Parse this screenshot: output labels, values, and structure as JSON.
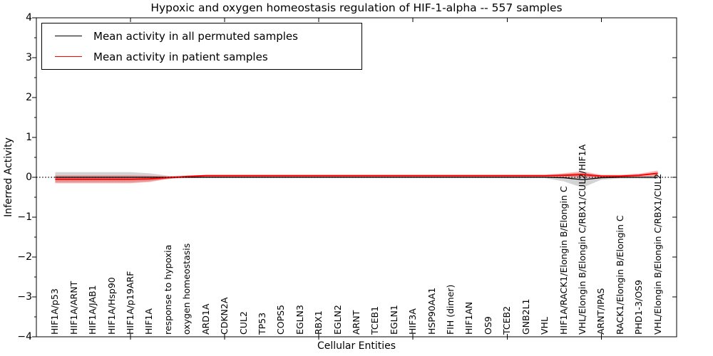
{
  "figure": {
    "window_background": "#ffffff"
  },
  "chart_data": {
    "type": "line",
    "title": "Hypoxic and oxygen homeostasis regulation of HIF-1-alpha -- 557 samples",
    "xlabel": "Cellular Entities",
    "ylabel": "Inferred Activity",
    "ylim": [
      -4,
      4
    ],
    "xlim_pad": 1,
    "grid": false,
    "legend_position": "upper left",
    "zero_reference_line": {
      "y": 0,
      "style": "dotted",
      "color": "#000000"
    },
    "yticks": [
      {
        "label": "4",
        "value": 4
      },
      {
        "label": "3",
        "value": 3
      },
      {
        "label": "2",
        "value": 2
      },
      {
        "label": "1",
        "value": 1
      },
      {
        "label": "0",
        "value": 0
      },
      {
        "label": "−1",
        "value": -1
      },
      {
        "label": "−2",
        "value": -2
      },
      {
        "label": "−3",
        "value": -3
      },
      {
        "label": "−4",
        "value": -4
      }
    ],
    "categories": [
      "HIF1A/p53",
      "HIF1A/ARNT",
      "HIF1A/JAB1",
      "HIF1A/Hsp90",
      "HIF1A/p19ARF",
      "HIF1A",
      "response to hypoxia",
      "oxygen homeostasis",
      "ARD1A",
      "CDKN2A",
      "CUL2",
      "TP53",
      "COPS5",
      "EGLN3",
      "RBX1",
      "EGLN2",
      "ARNT",
      "TCEB1",
      "EGLN1",
      "HIF3A",
      "HSP90AA1",
      "FIH (dimer)",
      "HIF1AN",
      "OS9",
      "TCEB2",
      "GNB2L1",
      "VHL",
      "HIF1A/RACK1/Elongin B/Elongin C",
      "VHL/Elongin B/Elongin C/RBX1/CUL2/HIF1A",
      "ARNT/IPAS",
      "RACK1/Elongin B/Elongin C",
      "PHD1-3/OS9",
      "VHL/Elongin B/Elongin C/RBX1/CUL2"
    ],
    "series": [
      {
        "name": "Mean activity in all permuted samples",
        "color": "#000000",
        "line_width": 1.3,
        "band_color": "rgba(128,128,128,0.35)",
        "values": [
          0,
          0,
          0,
          0,
          0,
          0,
          0,
          0,
          0,
          0,
          0,
          0,
          0,
          0,
          0,
          0,
          0,
          0,
          0,
          0,
          0,
          0,
          0,
          0,
          0,
          0,
          0,
          -0.01,
          -0.06,
          -0.01,
          0,
          0,
          0
        ],
        "band_upper": [
          0.13,
          0.13,
          0.13,
          0.13,
          0.13,
          0.1,
          0.04,
          0.02,
          0.02,
          0.02,
          0.02,
          0.02,
          0.02,
          0.02,
          0.02,
          0.02,
          0.02,
          0.02,
          0.02,
          0.02,
          0.02,
          0.02,
          0.02,
          0.02,
          0.02,
          0.02,
          0.02,
          0.08,
          0.12,
          0.04,
          0.02,
          0.03,
          0.05
        ],
        "band_lower": [
          -0.13,
          -0.13,
          -0.13,
          -0.13,
          -0.13,
          -0.1,
          -0.04,
          -0.02,
          -0.02,
          -0.02,
          -0.02,
          -0.02,
          -0.02,
          -0.02,
          -0.02,
          -0.02,
          -0.02,
          -0.02,
          -0.02,
          -0.02,
          -0.02,
          -0.02,
          -0.02,
          -0.02,
          -0.02,
          -0.02,
          -0.02,
          -0.1,
          -0.26,
          -0.06,
          -0.03,
          -0.03,
          -0.04
        ]
      },
      {
        "name": "Mean activity in patient samples",
        "color": "#ff0000",
        "line_width": 2,
        "band_color": "rgba(255,0,0,0.28)",
        "values": [
          -0.05,
          -0.05,
          -0.05,
          -0.05,
          -0.05,
          -0.04,
          -0.01,
          0.02,
          0.04,
          0.04,
          0.04,
          0.04,
          0.04,
          0.04,
          0.04,
          0.04,
          0.04,
          0.04,
          0.04,
          0.04,
          0.04,
          0.04,
          0.04,
          0.04,
          0.04,
          0.04,
          0.04,
          0.05,
          0.07,
          0.03,
          0.03,
          0.05,
          0.1
        ],
        "band_upper": [
          0.05,
          0.05,
          0.05,
          0.05,
          0.05,
          0.04,
          0.02,
          0.04,
          0.06,
          0.06,
          0.06,
          0.06,
          0.06,
          0.06,
          0.06,
          0.06,
          0.06,
          0.06,
          0.06,
          0.06,
          0.06,
          0.06,
          0.06,
          0.06,
          0.06,
          0.06,
          0.06,
          0.1,
          0.15,
          0.06,
          0.06,
          0.09,
          0.17
        ],
        "band_lower": [
          -0.15,
          -0.15,
          -0.15,
          -0.15,
          -0.15,
          -0.12,
          -0.04,
          0.0,
          0.02,
          0.02,
          0.02,
          0.02,
          0.02,
          0.02,
          0.02,
          0.02,
          0.02,
          0.02,
          0.02,
          0.02,
          0.02,
          0.02,
          0.02,
          0.02,
          0.02,
          0.02,
          0.02,
          0.01,
          0.0,
          0.0,
          0.01,
          0.02,
          0.03
        ]
      }
    ]
  }
}
